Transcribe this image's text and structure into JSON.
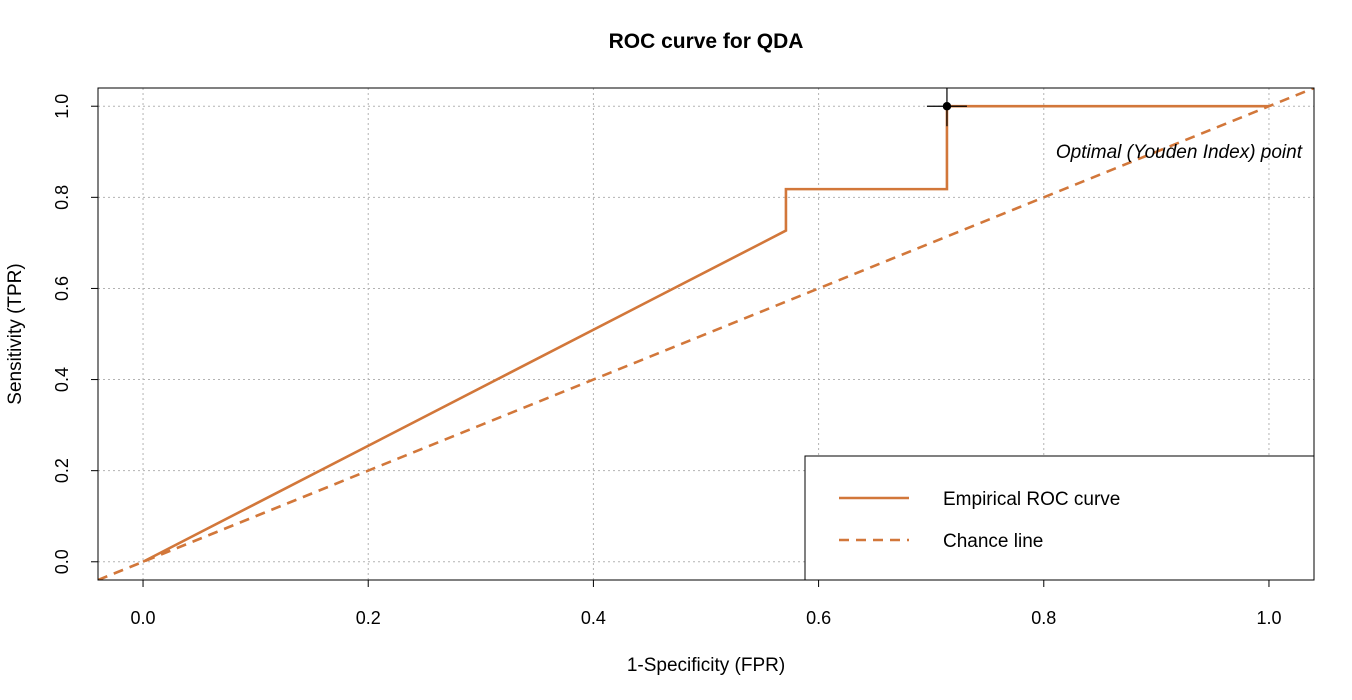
{
  "chart_data": {
    "type": "line",
    "title": "ROC curve for QDA",
    "xlabel": "1-Specificity (FPR)",
    "ylabel": "Sensitivity (TPR)",
    "xlim": [
      -0.04,
      1.04
    ],
    "ylim": [
      -0.04,
      1.04
    ],
    "x_ticks": [
      0.0,
      0.2,
      0.4,
      0.6,
      0.8,
      1.0
    ],
    "y_ticks": [
      0.0,
      0.2,
      0.4,
      0.6,
      0.8,
      1.0
    ],
    "x_tick_labels": [
      "0.0",
      "0.2",
      "0.4",
      "0.6",
      "0.8",
      "1.0"
    ],
    "y_tick_labels": [
      "0.0",
      "0.2",
      "0.4",
      "0.6",
      "0.8",
      "1.0"
    ],
    "grid": true,
    "series": [
      {
        "name": "Empirical ROC curve",
        "style": "solid",
        "color": "#D2773A",
        "x": [
          0.0,
          0.571,
          0.571,
          0.714,
          0.714,
          1.0
        ],
        "y": [
          0.0,
          0.727,
          0.818,
          0.818,
          1.0,
          1.0
        ]
      },
      {
        "name": "Chance line",
        "style": "dashed",
        "color": "#D2773A",
        "x": [
          -0.04,
          1.04
        ],
        "y": [
          -0.04,
          1.04
        ]
      }
    ],
    "optimal_point": {
      "x": 0.714,
      "y": 1.0,
      "label": "Optimal (Youden Index) point"
    },
    "legend": {
      "position": "bottom-right",
      "entries": [
        "Empirical ROC curve",
        "Chance line"
      ]
    }
  }
}
